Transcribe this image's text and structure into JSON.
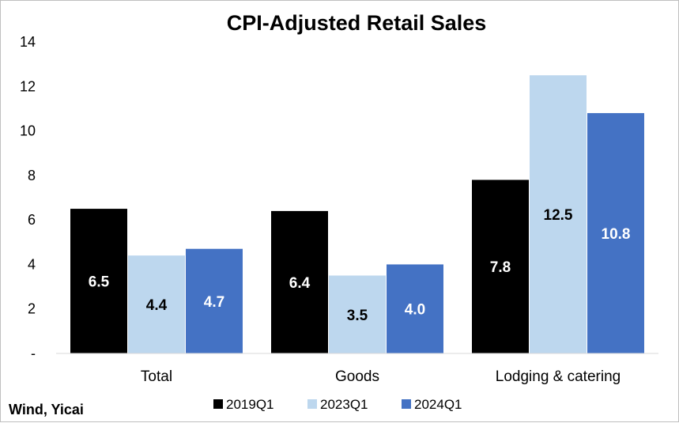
{
  "chart_data": {
    "type": "bar",
    "title": "CPI-Adjusted Retail Sales",
    "categories": [
      "Total",
      "Goods",
      "Lodging & catering"
    ],
    "series": [
      {
        "name": "2019Q1",
        "values": [
          6.5,
          6.4,
          7.8
        ],
        "color": "#000000",
        "label_color": "#ffffff"
      },
      {
        "name": "2023Q1",
        "values": [
          4.4,
          3.5,
          12.5
        ],
        "color": "#bdd7ee",
        "label_color": "#000000"
      },
      {
        "name": "2024Q1",
        "values": [
          4.7,
          4.0,
          10.8
        ],
        "color": "#4472c4",
        "label_color": "#ffffff"
      }
    ],
    "y_ticks": [
      "-",
      "2",
      "4",
      "6",
      "8",
      "10",
      "12",
      "14"
    ],
    "ylim": [
      0,
      14
    ],
    "xlabel": "",
    "ylabel": "",
    "grid": false,
    "legend_position": "bottom",
    "data_labels_decimals": 1
  },
  "source": "Wind, Yicai"
}
